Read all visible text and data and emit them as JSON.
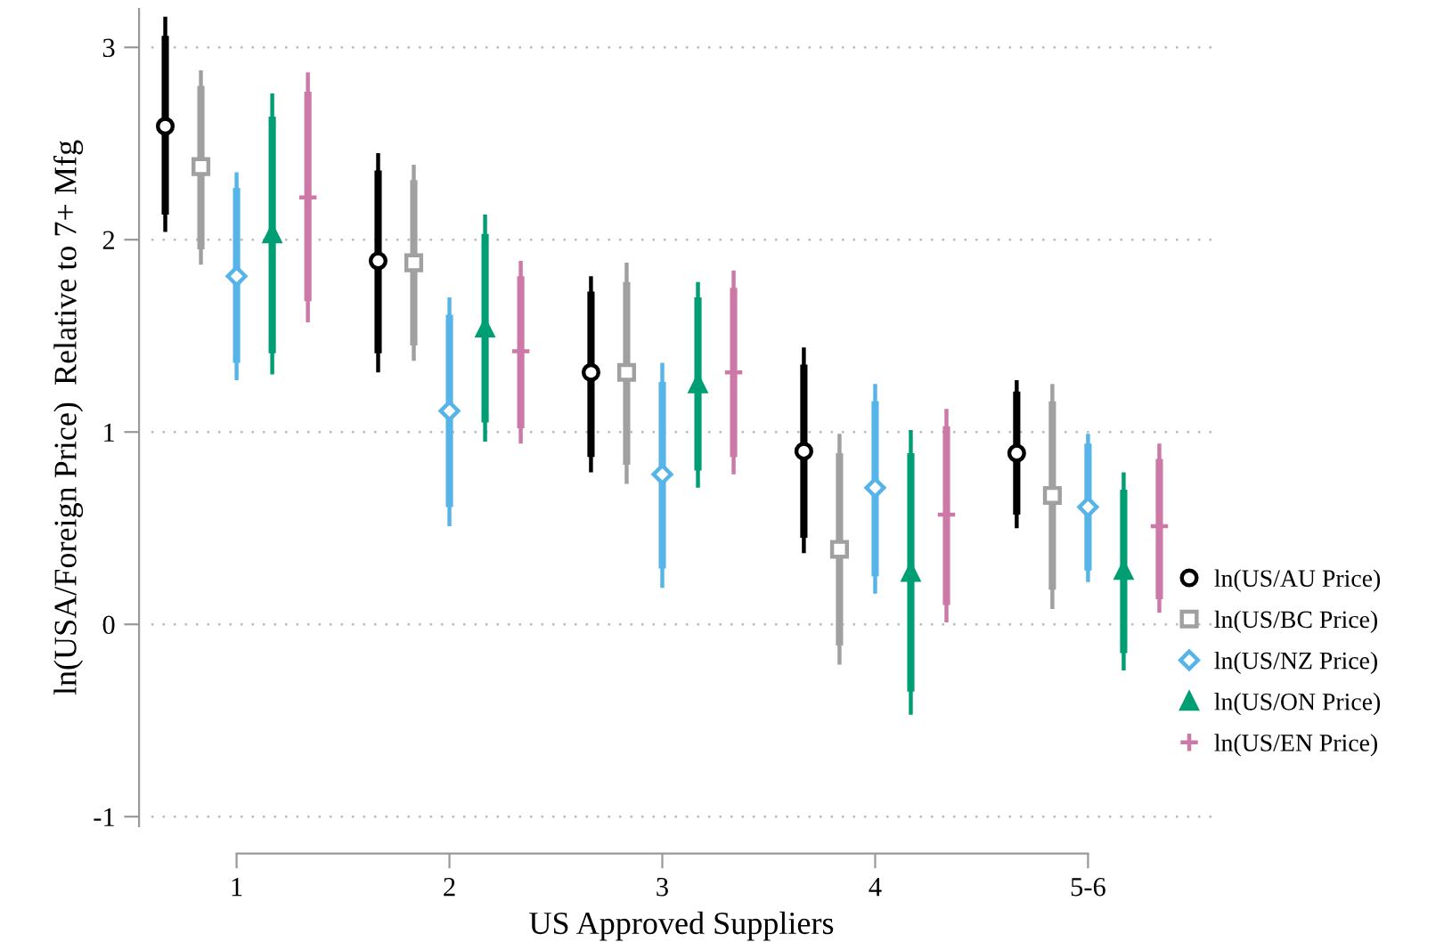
{
  "chart_data": {
    "type": "scatter",
    "xlabel": "US Approved Suppliers",
    "ylabel": "ln(USA/Foreign Price)  Relative to 7+ Mfg",
    "categories": [
      "1",
      "2",
      "3",
      "4",
      "5-6"
    ],
    "ylim": [
      -1.05,
      3.2
    ],
    "yticks": [
      -1,
      0,
      1,
      2,
      3
    ],
    "grid": "y",
    "legend": "right",
    "series": [
      {
        "name": "ln(US/AU Price)",
        "color": "#000000",
        "marker": "circle",
        "values": [
          2.59,
          1.89,
          1.31,
          0.9,
          0.89
        ],
        "errors": [
          [
            2.04,
            3.16
          ],
          [
            1.31,
            2.45
          ],
          [
            0.79,
            1.81
          ],
          [
            0.37,
            1.44
          ],
          [
            0.5,
            1.27
          ]
        ]
      },
      {
        "name": "ln(US/BC Price)",
        "color": "#a0a0a0",
        "marker": "square",
        "values": [
          2.38,
          1.88,
          1.31,
          0.39,
          0.67
        ],
        "errors": [
          [
            1.87,
            2.88
          ],
          [
            1.37,
            2.39
          ],
          [
            0.73,
            1.88
          ],
          [
            -0.21,
            0.99
          ],
          [
            0.08,
            1.25
          ]
        ]
      },
      {
        "name": "ln(US/NZ Price)",
        "color": "#56b4e9",
        "marker": "diamond",
        "values": [
          1.81,
          1.11,
          0.78,
          0.71,
          0.61
        ],
        "errors": [
          [
            1.27,
            2.35
          ],
          [
            0.51,
            1.7
          ],
          [
            0.19,
            1.36
          ],
          [
            0.16,
            1.25
          ],
          [
            0.22,
            0.99
          ]
        ]
      },
      {
        "name": "ln(US/ON Price)",
        "color": "#009e73",
        "marker": "triangle",
        "values": [
          2.03,
          1.54,
          1.25,
          0.27,
          0.28
        ],
        "errors": [
          [
            1.3,
            2.76
          ],
          [
            0.95,
            2.13
          ],
          [
            0.71,
            1.78
          ],
          [
            -0.47,
            1.01
          ],
          [
            -0.24,
            0.79
          ]
        ]
      },
      {
        "name": "ln(US/EN Price)",
        "color": "#cc79a7",
        "marker": "cross",
        "values": [
          2.22,
          1.42,
          1.31,
          0.57,
          0.51
        ],
        "errors": [
          [
            1.57,
            2.87
          ],
          [
            0.94,
            1.89
          ],
          [
            0.78,
            1.84
          ],
          [
            0.01,
            1.12
          ],
          [
            0.06,
            0.94
          ]
        ]
      },
      {
        "type": "bar",
        "color": "#000000",
        "base": [
          2.13,
          1.41,
          0.87,
          0.45,
          0.57
        ],
        "values": [
          0.93,
          0.95,
          0.86,
          0.9,
          0.64
        ]
      },
      {
        "type": "bar",
        "color": "#a0a0a0",
        "base": [
          1.95,
          1.45,
          0.83,
          -0.11,
          0.18
        ],
        "values": [
          0.85,
          0.86,
          0.95,
          1.0,
          0.98
        ]
      },
      {
        "type": "bar",
        "color": "#56b4e9",
        "base": [
          1.36,
          0.61,
          0.29,
          0.25,
          0.28
        ],
        "values": [
          0.91,
          1.0,
          0.97,
          0.91,
          0.66
        ]
      },
      {
        "type": "bar",
        "color": "#009e73",
        "base": [
          1.41,
          1.05,
          0.8,
          -0.35,
          -0.15
        ],
        "values": [
          1.23,
          0.98,
          0.9,
          1.24,
          0.85
        ]
      },
      {
        "type": "bar",
        "color": "#cc79a7",
        "base": [
          1.68,
          1.02,
          0.87,
          0.1,
          0.13
        ],
        "values": [
          1.09,
          0.79,
          0.88,
          0.93,
          0.73
        ]
      }
    ]
  }
}
